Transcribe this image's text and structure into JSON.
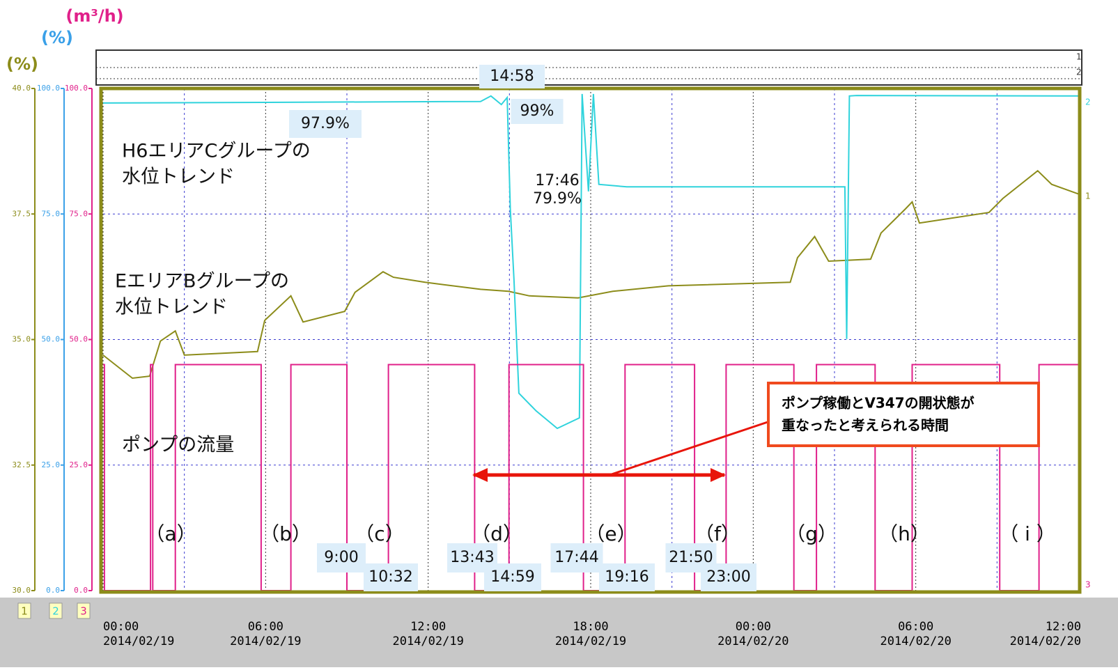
{
  "chart_data": {
    "type": "line",
    "xlim": [
      "2014/02/19 00:00",
      "2014/02/20 12:00"
    ],
    "xticks": [
      {
        "value": "2014/02/19 00:00",
        "label": [
          "00:00",
          "2014/02/19"
        ]
      },
      {
        "value": "2014/02/19 06:00",
        "label": [
          "06:00",
          "2014/02/19"
        ]
      },
      {
        "value": "2014/02/19 12:00",
        "label": [
          "12:00",
          "2014/02/19"
        ]
      },
      {
        "value": "2014/02/19 18:00",
        "label": [
          "18:00",
          "2014/02/19"
        ]
      },
      {
        "value": "2014/02/20 00:00",
        "label": [
          "00:00",
          "2014/02/20"
        ]
      },
      {
        "value": "2014/02/20 06:00",
        "label": [
          "06:00",
          "2014/02/20"
        ]
      },
      {
        "value": "2014/02/20 12:00",
        "label": [
          "12:00",
          "2014/02/20"
        ]
      }
    ],
    "grid": true,
    "yaxes": [
      {
        "label": "(%)",
        "color": "#8c8c1a",
        "ylim": [
          30,
          40
        ],
        "yticks": [
          {
            "value": 30,
            "label": "30.0"
          },
          {
            "value": 32.5,
            "label": "32.5"
          },
          {
            "value": 35,
            "label": "35.0"
          },
          {
            "value": 37.5,
            "label": "37.5"
          },
          {
            "value": 40,
            "label": "40.0"
          }
        ]
      },
      {
        "label": "(%)",
        "color": "#3aa0e8",
        "ylim": [
          0,
          100
        ],
        "yticks": [
          {
            "value": 0,
            "label": "0.0"
          },
          {
            "value": 25,
            "label": "25.0"
          },
          {
            "value": 50,
            "label": "50.0"
          },
          {
            "value": 75,
            "label": "75.0"
          },
          {
            "value": 100,
            "label": "100.0"
          }
        ]
      },
      {
        "label": "(m³/h)",
        "color": "#e0208a",
        "ylim": [
          0,
          100
        ],
        "yticks": [
          {
            "value": 0,
            "label": "0.0"
          },
          {
            "value": 25,
            "label": "25.0"
          },
          {
            "value": 50,
            "label": "50.0"
          },
          {
            "value": 75,
            "label": "75.0"
          },
          {
            "value": 100,
            "label": "100.0"
          }
        ]
      }
    ],
    "channel_labels": [
      "1",
      "2",
      "3"
    ],
    "series": [
      {
        "label": [
          "EエリアBグループの",
          "水位トレンド"
        ],
        "color": "#8c8c1a",
        "axis": 0,
        "x": [
          "2014/02/19 00:00",
          "2014/02/19 01:05",
          "2014/02/19 01:43",
          "2014/02/19 02:07",
          "2014/02/19 02:40",
          "2014/02/19 03:00",
          "2014/02/19 05:42",
          "2014/02/19 05:58",
          "2014/02/19 06:56",
          "2014/02/19 07:23",
          "2014/02/19 08:55",
          "2014/02/19 09:18",
          "2014/02/19 10:20",
          "2014/02/19 10:43",
          "2014/02/19 11:53",
          "2014/02/19 13:56",
          "2014/02/19 14:58",
          "2014/02/19 15:44",
          "2014/02/19 17:32",
          "2014/02/19 18:49",
          "2014/02/19 20:52",
          "2014/02/20 01:22",
          "2014/02/20 01:38",
          "2014/02/20 02:16",
          "2014/02/20 02:47",
          "2014/02/20 04:20",
          "2014/02/20 04:43",
          "2014/02/20 05:37",
          "2014/02/20 05:52",
          "2014/02/20 06:08",
          "2014/02/20 08:42",
          "2014/02/20 09:13",
          "2014/02/20 10:30",
          "2014/02/20 11:01",
          "2014/02/20 12:00"
        ],
        "values": [
          34.69,
          34.23,
          34.27,
          34.97,
          35.17,
          34.69,
          34.76,
          35.38,
          35.87,
          35.35,
          35.56,
          35.94,
          36.35,
          36.24,
          36.14,
          36.0,
          35.96,
          35.87,
          35.83,
          35.96,
          36.07,
          36.14,
          36.63,
          37.05,
          36.56,
          36.6,
          37.12,
          37.6,
          37.74,
          37.32,
          37.53,
          37.81,
          38.36,
          38.09,
          37.9
        ]
      },
      {
        "label": [
          "H6エリアCグループの",
          "水位トレンド"
        ],
        "color": "#2fd3dc",
        "axis": 1,
        "x": [
          "2014/02/19 00:00",
          "2014/02/19 13:56",
          "2014/02/19 14:19",
          "2014/02/19 14:42",
          "2014/02/19 14:55",
          "2014/02/19 15:02",
          "2014/02/19 15:10",
          "2014/02/19 15:21",
          "2014/02/19 15:59",
          "2014/02/19 16:46",
          "2014/02/19 17:35",
          "2014/02/19 17:41",
          "2014/02/19 17:55",
          "2014/02/19 18:06",
          "2014/02/19 18:18",
          "2014/02/19 19:20",
          "2014/02/19 21:54",
          "2014/02/20 03:23",
          "2014/02/20 03:27",
          "2014/02/20 03:33",
          "2014/02/20 03:49",
          "2014/02/20 12:00"
        ],
        "values": [
          97.1,
          97.4,
          98.5,
          96.8,
          98.2,
          76,
          62.1,
          39.3,
          35.8,
          32.3,
          34.4,
          98.9,
          79.5,
          98.9,
          80.9,
          80.4,
          80.4,
          80.4,
          50.1,
          98.5,
          98.6,
          98.5
        ]
      },
      {
        "label": [
          "ポンプの流量"
        ],
        "color": "#e0208a",
        "axis": 2,
        "x": [
          "2014/02/19 00:00",
          "2014/02/19 00:03",
          "2014/02/19 00:03",
          "2014/02/19 01:45",
          "2014/02/19 01:45",
          "2014/02/19 01:50",
          "2014/02/19 01:50",
          "2014/02/19 02:40",
          "2014/02/19 02:40",
          "2014/02/19 05:50",
          "2014/02/19 05:50",
          "2014/02/19 06:56",
          "2014/02/19 06:56",
          "2014/02/19 09:00",
          "2014/02/19 09:00",
          "2014/02/19 10:32",
          "2014/02/19 10:32",
          "2014/02/19 13:43",
          "2014/02/19 13:43",
          "2014/02/19 14:59",
          "2014/02/19 14:59",
          "2014/02/19 17:44",
          "2014/02/19 17:44",
          "2014/02/19 19:16",
          "2014/02/19 19:16",
          "2014/02/19 21:50",
          "2014/02/19 21:50",
          "2014/02/19 23:00",
          "2014/02/19 23:00",
          "2014/02/20 01:30",
          "2014/02/20 01:30",
          "2014/02/20 02:20",
          "2014/02/20 02:20",
          "2014/02/20 04:30",
          "2014/02/20 04:30",
          "2014/02/20 05:52",
          "2014/02/20 05:52",
          "2014/02/20 09:06",
          "2014/02/20 09:06",
          "2014/02/20 10:33",
          "2014/02/20 10:33",
          "2014/02/20 12:00"
        ],
        "values": [
          45,
          45,
          0,
          0,
          45,
          45,
          0,
          0,
          45,
          45,
          0,
          0,
          45,
          45,
          0,
          0,
          45,
          45,
          0,
          0,
          45,
          45,
          0,
          0,
          45,
          45,
          0,
          0,
          45,
          45,
          0,
          0,
          45,
          45,
          0,
          0,
          45,
          45,
          0,
          0,
          45,
          45
        ]
      }
    ],
    "annotations": [
      "14:58",
      "97.9%",
      "99%",
      "17:46",
      "79.9%",
      "9:00",
      "10:32",
      "13:43",
      "14:59",
      "17:44",
      "19:16",
      "21:50",
      "23:00"
    ],
    "pulse_labels": [
      "（a）",
      "（b）",
      "（c）",
      "（d）",
      "（e）",
      "（f）",
      "（g）",
      "（h）",
      "（ i ）"
    ],
    "callout": [
      "ポンプ稼働とV347の開状態が",
      "重なったと考えられる時間"
    ]
  }
}
